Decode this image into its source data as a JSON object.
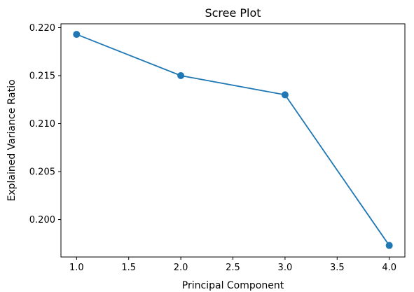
{
  "chart_data": {
    "type": "line",
    "title": "Scree Plot",
    "xlabel": "Principal Component",
    "ylabel": "Explained Variance Ratio",
    "xlim": [
      0.85,
      4.15
    ],
    "ylim": [
      0.1961,
      0.2204
    ],
    "xticks": [
      1.0,
      1.5,
      2.0,
      2.5,
      3.0,
      3.5,
      4.0
    ],
    "xtick_labels": [
      "1.0",
      "1.5",
      "2.0",
      "2.5",
      "3.0",
      "3.5",
      "4.0"
    ],
    "yticks": [
      0.2,
      0.205,
      0.21,
      0.215,
      0.22
    ],
    "ytick_labels": [
      "0.200",
      "0.205",
      "0.210",
      "0.215",
      "0.220"
    ],
    "grid": false,
    "series": [
      {
        "x": [
          1,
          2,
          3,
          4
        ],
        "values": [
          0.2193,
          0.215,
          0.213,
          0.1973
        ],
        "marker": "circle"
      }
    ],
    "colors": {
      "line": "#1f77b4",
      "marker": "#1f77b4",
      "axes": "#000000"
    }
  }
}
